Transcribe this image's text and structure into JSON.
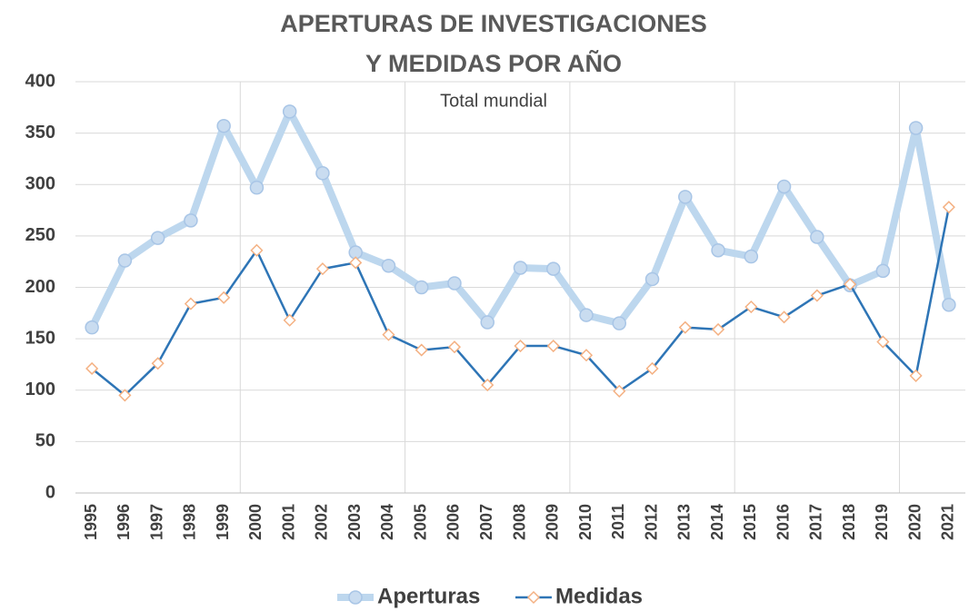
{
  "chart_data": {
    "type": "line",
    "title": [
      "APERTURAS DE INVESTIGACIONES",
      "Y MEDIDAS POR AÑO"
    ],
    "subtitle": "Total mundial",
    "categories": [
      "1995",
      "1996",
      "1997",
      "1998",
      "1999",
      "2000",
      "2001",
      "2002",
      "2003",
      "2004",
      "2005",
      "2006",
      "2007",
      "2008",
      "2009",
      "2010",
      "2011",
      "2012",
      "2013",
      "2014",
      "2015",
      "2016",
      "2017",
      "2018",
      "2019",
      "2020",
      "2021"
    ],
    "series": [
      {
        "name": "Aperturas",
        "color": "#bdd7ee",
        "values": [
          161,
          226,
          248,
          265,
          357,
          297,
          371,
          311,
          234,
          221,
          200,
          204,
          166,
          219,
          218,
          173,
          165,
          208,
          288,
          236,
          230,
          298,
          249,
          202,
          216,
          355,
          183
        ]
      },
      {
        "name": "Medidas",
        "color": "#2e75b6",
        "values": [
          121,
          95,
          126,
          184,
          190,
          236,
          168,
          218,
          224,
          154,
          139,
          142,
          105,
          143,
          143,
          134,
          99,
          121,
          161,
          159,
          181,
          171,
          192,
          203,
          147,
          114,
          278
        ]
      }
    ],
    "ylim": [
      0,
      400
    ],
    "yticks": [
      0,
      50,
      100,
      150,
      200,
      250,
      300,
      350,
      400
    ],
    "grid": true,
    "legend": "bottom"
  }
}
